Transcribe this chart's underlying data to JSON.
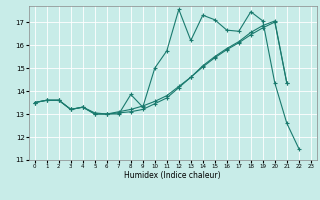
{
  "title": "",
  "xlabel": "Humidex (Indice chaleur)",
  "ylabel": "",
  "background_color": "#c8ece8",
  "grid_color": "#ffffff",
  "line_color": "#1a7a6e",
  "xlim": [
    -0.5,
    23.5
  ],
  "ylim": [
    11,
    17.7
  ],
  "yticks": [
    11,
    12,
    13,
    14,
    15,
    16,
    17
  ],
  "xticks": [
    0,
    1,
    2,
    3,
    4,
    5,
    6,
    7,
    8,
    9,
    10,
    11,
    12,
    13,
    14,
    15,
    16,
    17,
    18,
    19,
    20,
    21,
    22,
    23
  ],
  "series1_x": [
    0,
    1,
    2,
    3,
    4,
    5,
    6,
    7,
    8,
    9,
    10,
    11,
    12,
    13,
    14,
    15,
    16,
    17,
    18,
    19,
    20,
    21,
    22
  ],
  "series1_y": [
    13.5,
    13.6,
    13.6,
    13.2,
    13.3,
    13.0,
    13.0,
    13.0,
    13.85,
    13.3,
    15.0,
    15.75,
    17.55,
    16.2,
    17.3,
    17.1,
    16.65,
    16.6,
    17.45,
    17.05,
    14.35,
    12.6,
    11.5
  ],
  "series2_x": [
    0,
    1,
    2,
    3,
    4,
    5,
    6,
    7,
    8,
    9,
    10,
    11,
    12,
    13,
    14,
    15,
    16,
    17,
    18,
    19,
    20,
    21
  ],
  "series2_y": [
    13.5,
    13.6,
    13.6,
    13.2,
    13.3,
    13.0,
    13.0,
    13.05,
    13.1,
    13.2,
    13.45,
    13.7,
    14.15,
    14.6,
    15.05,
    15.45,
    15.8,
    16.1,
    16.45,
    16.75,
    17.0,
    14.35
  ],
  "series3_x": [
    0,
    1,
    2,
    3,
    4,
    5,
    6,
    7,
    8,
    9,
    10,
    11,
    12,
    13,
    14,
    15,
    16,
    17,
    18,
    19,
    20,
    21
  ],
  "series3_y": [
    13.5,
    13.6,
    13.6,
    13.2,
    13.3,
    13.05,
    13.0,
    13.1,
    13.2,
    13.35,
    13.55,
    13.8,
    14.2,
    14.6,
    15.1,
    15.5,
    15.85,
    16.15,
    16.55,
    16.85,
    17.05,
    14.35
  ]
}
